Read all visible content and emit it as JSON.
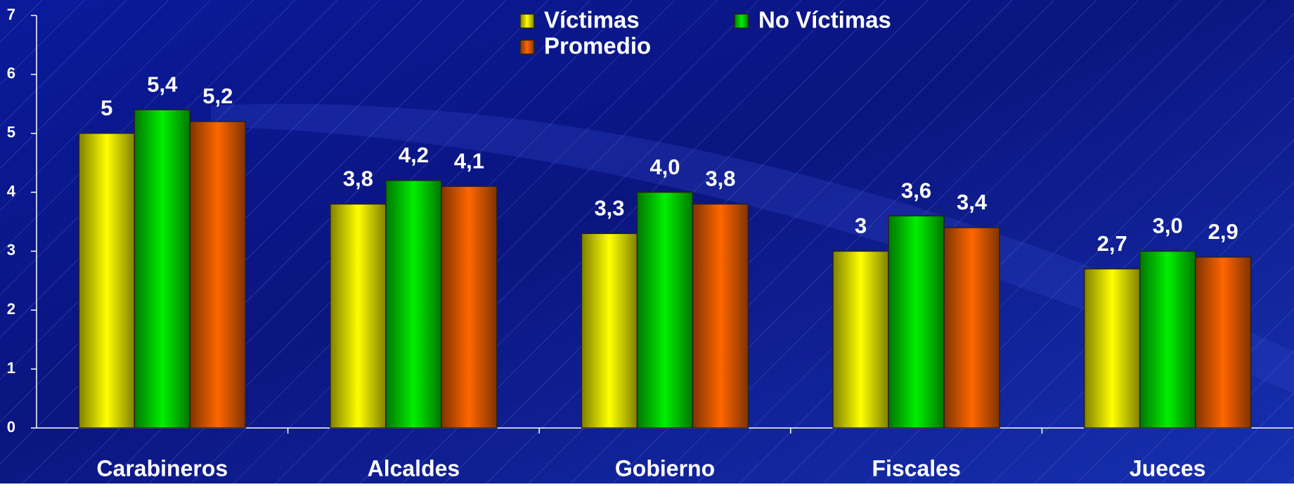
{
  "chart_data": {
    "type": "bar",
    "categories": [
      "Carabineros",
      "Alcaldes",
      "Gobierno",
      "Fiscales",
      "Jueces"
    ],
    "series": [
      {
        "name": "Víctimas",
        "color": "#ffff00",
        "values": [
          5,
          3.8,
          3.3,
          3,
          2.7
        ],
        "value_labels": [
          "5",
          "3,8",
          "3,3",
          "3",
          "2,7"
        ]
      },
      {
        "name": "No Víctimas",
        "color": "#00ee00",
        "values": [
          5.4,
          4.2,
          4.0,
          3.6,
          3.0
        ],
        "value_labels": [
          "5,4",
          "4,2",
          "4,0",
          "3,6",
          "3,0"
        ]
      },
      {
        "name": "Promedio",
        "color": "#ff6600",
        "values": [
          5.2,
          4.1,
          3.8,
          3.4,
          2.9
        ],
        "value_labels": [
          "5,2",
          "4,1",
          "3,8",
          "3,4",
          "2,9"
        ]
      }
    ],
    "ylim": [
      0,
      7
    ],
    "yticks": [
      0,
      1,
      2,
      3,
      4,
      5,
      6,
      7
    ],
    "grid": false
  }
}
